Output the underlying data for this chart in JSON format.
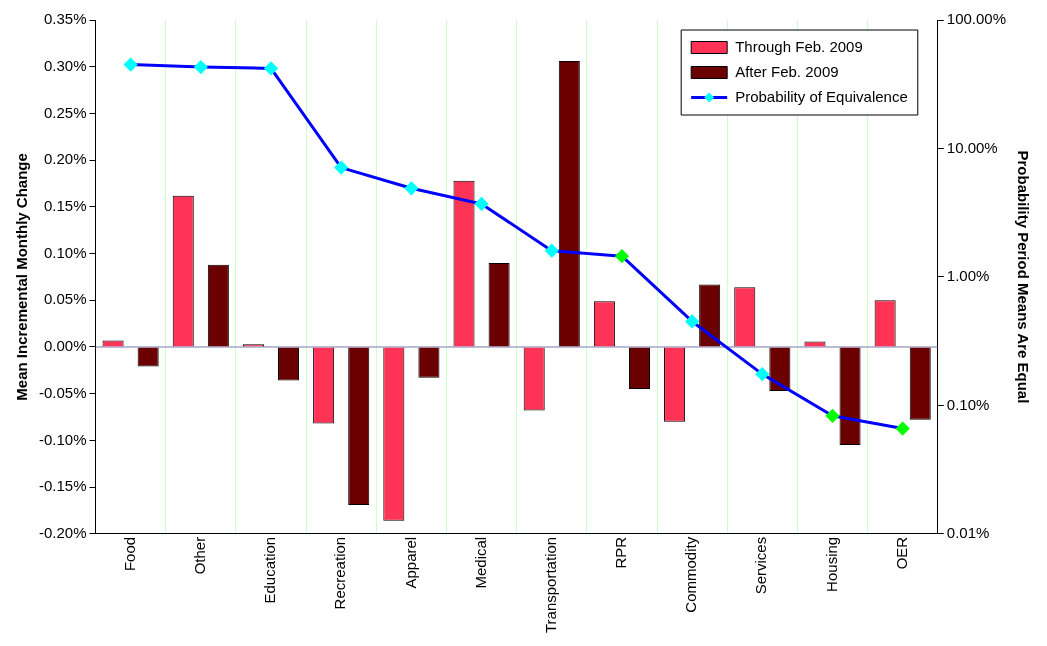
{
  "chart_data": {
    "type": "bar",
    "ylabel": "Mean Incremental Monthly Change",
    "y2label": "Probability Period Means Are Equal",
    "categories": [
      "Food",
      "Other",
      "Education",
      "Recreation",
      "Apparel",
      "Medical",
      "Transportation",
      "RPR",
      "Commodity",
      "Services",
      "Housing",
      "OER"
    ],
    "series": [
      {
        "name": "Through Feb. 2009",
        "color": "#ff3355",
        "values": [
          0.007,
          0.162,
          0.003,
          -0.082,
          -0.186,
          0.178,
          -0.068,
          0.049,
          -0.08,
          0.064,
          0.006,
          0.05
        ]
      },
      {
        "name": "After Feb. 2009",
        "color": "#6b0000",
        "values": [
          -0.021,
          0.088,
          -0.036,
          -0.169,
          -0.033,
          0.09,
          0.306,
          -0.045,
          0.067,
          -0.047,
          -0.105,
          -0.078
        ]
      },
      {
        "name": "Probability of Equivalence",
        "type": "line",
        "axis": "y2",
        "color": "#0000ff",
        "marker": "diamond",
        "colors": [
          "#00ffff",
          "#00ffff",
          "#00ffff",
          "#00ffff",
          "#00ffff",
          "#00ffff",
          "#00ffff",
          "#00ff00",
          "#00ffff",
          "#00ffff",
          "#00ff00",
          "#00ff00"
        ],
        "values": [
          45,
          43,
          42,
          7.1,
          4.9,
          3.7,
          1.6,
          1.45,
          0.45,
          0.175,
          0.083,
          0.066
        ]
      }
    ],
    "ylim": [
      -0.2,
      0.35
    ],
    "yticks": [
      {
        "value": -0.2,
        "label": "-0.20%"
      },
      {
        "value": -0.15,
        "label": "-0.15%"
      },
      {
        "value": -0.1,
        "label": "-0.10%"
      },
      {
        "value": -0.05,
        "label": "-0.05%"
      },
      {
        "value": 0,
        "label": "0.00%"
      },
      {
        "value": 0.05,
        "label": "0.05%"
      },
      {
        "value": 0.1,
        "label": "0.10%"
      },
      {
        "value": 0.15,
        "label": "0.15%"
      },
      {
        "value": 0.2,
        "label": "0.20%"
      },
      {
        "value": 0.25,
        "label": "0.25%"
      },
      {
        "value": 0.3,
        "label": "0.30%"
      },
      {
        "value": 0.35,
        "label": "0.35%"
      }
    ],
    "y2lim": [
      0.01,
      100
    ],
    "y2ticks": [
      {
        "value": 0.01,
        "label": "0.01%"
      },
      {
        "value": 0.1,
        "label": "0.10%"
      },
      {
        "value": 1,
        "label": "1.00%"
      },
      {
        "value": 10,
        "label": "10.00%"
      },
      {
        "value": 100,
        "label": "100.00%"
      }
    ],
    "ref_lines": [
      {
        "axis": "y",
        "value": 0,
        "color": "#7777aa"
      }
    ],
    "log": "y2",
    "grid": "x",
    "legend": "top right"
  }
}
